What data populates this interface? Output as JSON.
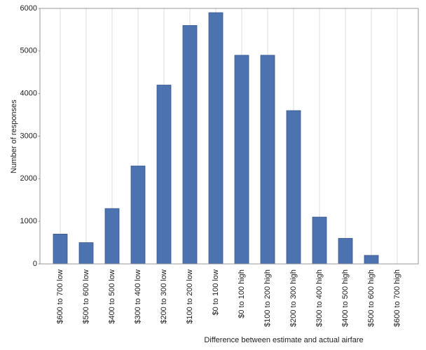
{
  "chart_data": {
    "type": "bar",
    "xlabel": "Difference between estimate and actual airfare",
    "ylabel": "Number of responses",
    "categories": [
      "$600 to 700 low",
      "$500 to 600 low",
      "$400 to 500 low",
      "$300 to 400 low",
      "$200 to 300 low",
      "$100 to 200 low",
      "$0 to 100 low",
      "$0 to 100 high",
      "$100 to 200 high",
      "$200 to 300 high",
      "$300 to 400 high",
      "$400 to 500 high",
      "$500 to 600 high",
      "$600 to 700 high"
    ],
    "values": [
      700,
      500,
      1300,
      2300,
      4200,
      5600,
      5900,
      4900,
      4900,
      3600,
      1100,
      600,
      200,
      0
    ],
    "color": "#4c72b0",
    "ylim": [
      0,
      6000
    ],
    "yticks": [
      0,
      1000,
      2000,
      3000,
      4000,
      5000,
      6000
    ],
    "grid": true
  }
}
